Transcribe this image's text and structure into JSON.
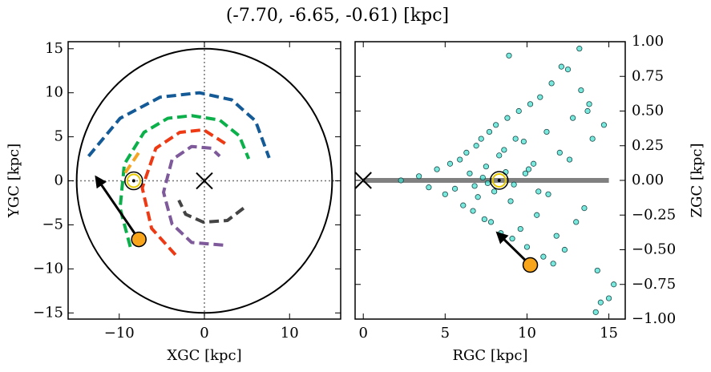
{
  "chart_data": [
    {
      "type": "line",
      "title": "(-7.70, -6.65, -0.61) [kpc]",
      "xlabel": "XGC [kpc]",
      "ylabel": "YGC [kpc]",
      "xlim": [
        -16,
        16
      ],
      "ylim": [
        -15.7,
        15.8
      ],
      "xticks": [
        {
          "value": -10,
          "label": "−10"
        },
        0,
        10
      ],
      "yticks": [
        {
          "value": -15,
          "label": "−15"
        },
        {
          "value": -10,
          "label": "−10"
        },
        {
          "value": -5,
          "label": "−5"
        },
        0,
        5,
        10,
        15
      ],
      "boundary_radius": 15,
      "galactic_center": [
        0,
        0
      ],
      "sun": [
        -8.3,
        0
      ],
      "object": [
        -7.7,
        -6.65
      ],
      "arrow_to": [
        -12.7,
        0.4
      ],
      "series": [
        {
          "color": "#135a96",
          "x": [
            -13.6,
            -9.9,
            -5.2,
            -0.6,
            3.2,
            6.0,
            7.6
          ],
          "values": [
            2.8,
            7.1,
            9.5,
            10,
            9.2,
            6.8,
            2.6
          ]
        },
        {
          "color": "#0bb04b",
          "x": [
            -8.7,
            -9.9,
            -9.4,
            -7.1,
            -4.3,
            -1.5,
            1.8,
            4.1,
            5.2
          ],
          "values": [
            -7.5,
            -3.1,
            1.9,
            5.5,
            7.1,
            7.4,
            6.9,
            5.1,
            2.5
          ]
        },
        {
          "color": "#ee3a14",
          "x": [
            -3.4,
            -6.2,
            -7.3,
            -5.7,
            -2.9,
            -0.1,
            2.5
          ],
          "values": [
            -8.4,
            -5.4,
            -0.8,
            3.7,
            5.5,
            5.8,
            4.2
          ]
        },
        {
          "color": "#f5a623",
          "x": [
            -9.3,
            -7.5
          ],
          "values": [
            0.9,
            3.5
          ]
        },
        {
          "color": "#7e5a9b",
          "x": [
            2.2,
            -1.5,
            -3.8,
            -4.8,
            -3.8,
            -1.5,
            0.8,
            1.8
          ],
          "values": [
            -7.3,
            -7.0,
            -4.9,
            -1.3,
            2.4,
            3.9,
            3.7,
            2.8
          ]
        },
        {
          "color": "#444444",
          "x": [
            4.6,
            2.7,
            -0.1,
            -2.2,
            -3.0
          ],
          "values": [
            -3.1,
            -4.5,
            -4.7,
            -3.8,
            -2.2
          ]
        }
      ]
    },
    {
      "type": "scatter",
      "xlabel": "RGC [kpc]",
      "ylabel": "ZGC [kpc]",
      "xlim": [
        -0.5,
        16
      ],
      "ylim": [
        -1,
        1
      ],
      "xticks": [
        0,
        5,
        10,
        15
      ],
      "yticks": [
        {
          "value": -1,
          "label": "−1.00"
        },
        {
          "value": -0.75,
          "label": "−0.75"
        },
        {
          "value": -0.5,
          "label": "−0.50"
        },
        {
          "value": -0.25,
          "label": "−0.25"
        },
        {
          "value": 0,
          "label": "0.00"
        },
        {
          "value": 0.25,
          "label": "0.25"
        },
        {
          "value": 0.5,
          "label": "0.50"
        },
        {
          "value": 0.75,
          "label": "0.75"
        },
        {
          "value": 1,
          "label": "1.00"
        }
      ],
      "color": "#40e0d0",
      "galactic_center": [
        0,
        0
      ],
      "sun": [
        8.3,
        0
      ],
      "object": [
        10.2,
        -0.61
      ],
      "arrow_to": [
        8.2,
        -0.38
      ],
      "plane_extent": [
        0,
        15
      ],
      "x": [
        2.3,
        3.4,
        4.0,
        4.5,
        5.0,
        5.3,
        5.6,
        5.9,
        6.1,
        6.3,
        6.5,
        6.7,
        6.9,
        7.0,
        7.2,
        7.4,
        7.5,
        7.7,
        7.8,
        8.0,
        8.1,
        8.3,
        8.4,
        8.6,
        8.8,
        9.0,
        9.1,
        9.3,
        9.5,
        9.6,
        9.8,
        10.0,
        10.2,
        10.4,
        10.6,
        10.8,
        11.0,
        11.2,
        11.5,
        11.8,
        12.0,
        12.3,
        12.5,
        12.8,
        13.0,
        13.3,
        13.5,
        13.8,
        14.0,
        14.3,
        14.5,
        14.7,
        15.0,
        15.3,
        7.6,
        8.7,
        9.2,
        10.1,
        11.3,
        12.6,
        13.2,
        14.2,
        7.3,
        6.8,
        8.9,
        10.7,
        12.1,
        13.7,
        9.9,
        11.6
      ],
      "values": [
        0.0,
        0.03,
        -0.05,
        0.08,
        -0.1,
        0.12,
        -0.06,
        0.15,
        -0.18,
        0.2,
        0.05,
        -0.22,
        0.25,
        -0.12,
        0.3,
        -0.28,
        0.1,
        0.35,
        -0.3,
        -0.08,
        0.4,
        0.18,
        -0.38,
        0.22,
        0.45,
        -0.15,
        -0.42,
        0.3,
        0.5,
        -0.35,
        0.28,
        -0.48,
        0.55,
        0.12,
        -0.25,
        0.6,
        -0.55,
        0.35,
        0.7,
        -0.4,
        0.2,
        -0.5,
        0.8,
        0.45,
        -0.3,
        0.65,
        -0.2,
        0.55,
        0.3,
        -0.65,
        -0.88,
        0.4,
        -0.85,
        -0.75,
        -0.02,
        0.06,
        -0.03,
        0.08,
        -0.1,
        0.15,
        0.95,
        -0.95,
        0.02,
        -0.04,
        0.9,
        -0.08,
        0.82,
        0.5,
        0.05,
        -0.6
      ]
    }
  ]
}
